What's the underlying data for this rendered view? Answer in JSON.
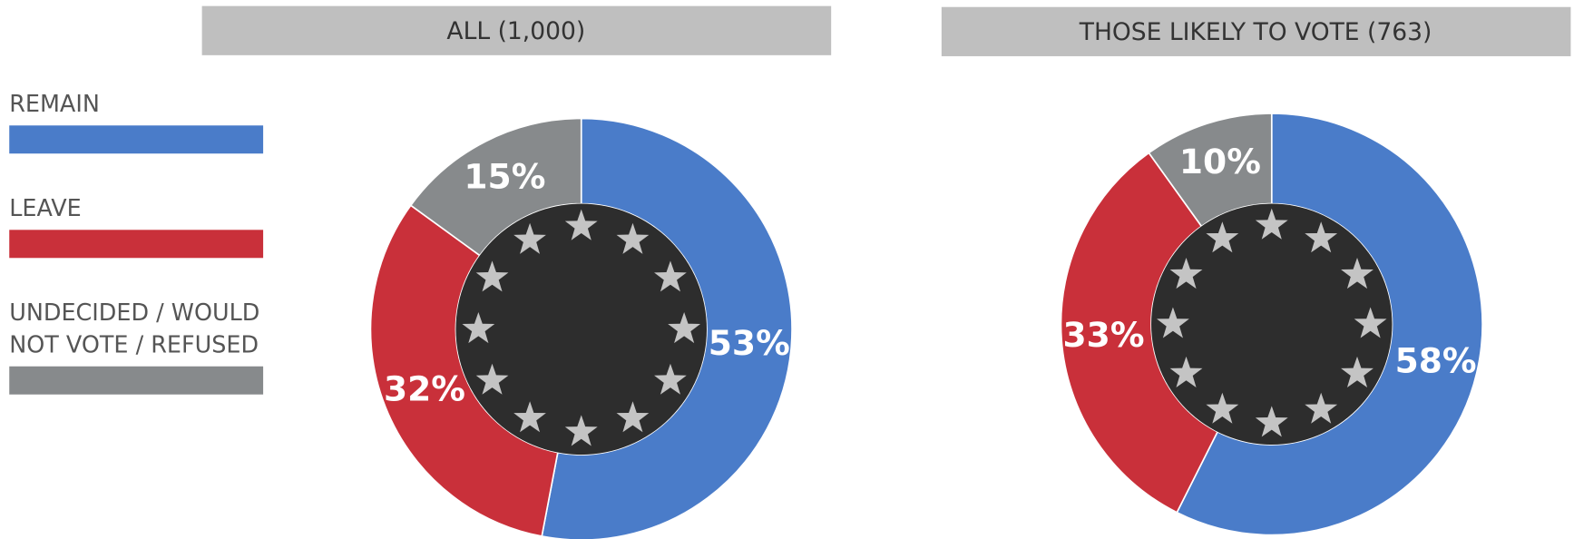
{
  "legend": [
    {
      "name": "REMAIN",
      "color": "#4a7cc9"
    },
    {
      "name": "LEAVE",
      "color": "#c9303a"
    },
    {
      "name": "UNDECIDED / WOULD NOT VOTE / REFUSED",
      "color": "#878a8c"
    }
  ],
  "chart_data": [
    {
      "type": "pie",
      "title": "ALL (1,000)",
      "values": [
        53,
        32,
        15
      ],
      "value_labels": [
        "53%",
        "32%",
        "15%"
      ]
    },
    {
      "type": "pie",
      "title": "THOSE LIKELY TO VOTE (763)",
      "values": [
        58,
        33,
        10
      ],
      "value_labels": [
        "58%",
        "33%",
        "10%"
      ]
    }
  ]
}
